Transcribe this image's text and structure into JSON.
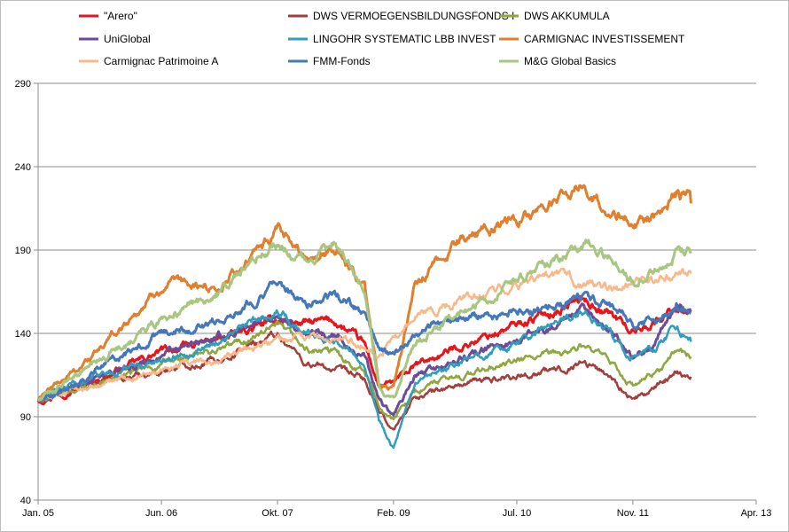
{
  "chart_data": {
    "type": "line",
    "title": "",
    "xlabel": "",
    "ylabel": "",
    "ylim": [
      40,
      290
    ],
    "yticks": [
      40,
      90,
      140,
      190,
      240,
      290
    ],
    "xlim": [
      0,
      99
    ],
    "xticks": [
      {
        "label": "Jan. 05",
        "month": 0
      },
      {
        "label": "Jun. 06",
        "month": 17
      },
      {
        "label": "Okt. 07",
        "month": 33
      },
      {
        "label": "Feb. 09",
        "month": 49
      },
      {
        "label": "Jul. 10",
        "month": 66
      },
      {
        "label": "Nov. 11",
        "month": 82
      },
      {
        "label": "Apr. 13",
        "month": 99
      }
    ],
    "grid": "horizontal",
    "legend_position": "top",
    "x": [
      0,
      8,
      17,
      25,
      33,
      37,
      41,
      45,
      47,
      49,
      52,
      58,
      66,
      72,
      75,
      79,
      82,
      85,
      88,
      90
    ],
    "series": [
      {
        "name": "\"Arero\"",
        "color": "#e8151b",
        "width": 3,
        "values": [
          100,
          112,
          129,
          136,
          148,
          146,
          147,
          133,
          108,
          110,
          120,
          132,
          145,
          155,
          161,
          152,
          141,
          147,
          156,
          154
        ]
      },
      {
        "name": "DWS VERMOEGENSBILDUNGSFONDS  I",
        "color": "#a23e3b",
        "width": 2.5,
        "values": [
          100,
          110,
          118,
          125,
          140,
          122,
          118,
          112,
          92,
          82,
          102,
          109,
          115,
          118,
          124,
          114,
          100,
          106,
          118,
          114
        ]
      },
      {
        "name": "DWS AKKUMULA",
        "color": "#8ea73e",
        "width": 2.5,
        "values": [
          100,
          110,
          121,
          130,
          143,
          130,
          128,
          118,
          97,
          88,
          106,
          114,
          123,
          128,
          132,
          122,
          108,
          115,
          130,
          126
        ]
      },
      {
        "name": "UniGlobal",
        "color": "#6d4b97",
        "width": 3,
        "values": [
          100,
          114,
          127,
          137,
          152,
          140,
          138,
          126,
          100,
          90,
          114,
          124,
          136,
          147,
          153,
          142,
          126,
          134,
          158,
          154
        ]
      },
      {
        "name": "LINGOHR SYSTEMATIC  LBB INVEST",
        "color": "#2f9ebd",
        "width": 2.5,
        "values": [
          100,
          115,
          124,
          136,
          154,
          140,
          138,
          124,
          88,
          72,
          108,
          122,
          134,
          148,
          152,
          140,
          126,
          130,
          144,
          135
        ]
      },
      {
        "name": "CARMIGNAC  INVESTISSEMENT",
        "color": "#e07f2e",
        "width": 3,
        "values": [
          100,
          128,
          168,
          168,
          200,
          186,
          192,
          168,
          110,
          108,
          168,
          196,
          208,
          220,
          228,
          214,
          206,
          210,
          224,
          218
        ]
      },
      {
        "name": "Carmignac Patrimoine  A",
        "color": "#f9b88a",
        "width": 2.5,
        "values": [
          100,
          108,
          120,
          124,
          136,
          136,
          136,
          134,
          128,
          135,
          148,
          160,
          170,
          172,
          170,
          166,
          168,
          172,
          176,
          176
        ]
      },
      {
        "name": "FMM-Fonds",
        "color": "#4478b9",
        "width": 3,
        "values": [
          100,
          118,
          140,
          148,
          170,
          158,
          162,
          152,
          130,
          126,
          140,
          148,
          152,
          158,
          162,
          156,
          146,
          148,
          156,
          152
        ]
      },
      {
        "name": "M&G Global Basics",
        "color": "#a9c680",
        "width": 3,
        "values": [
          100,
          122,
          148,
          164,
          196,
          182,
          196,
          170,
          108,
          100,
          134,
          152,
          172,
          184,
          196,
          186,
          170,
          176,
          190,
          188
        ]
      }
    ]
  }
}
